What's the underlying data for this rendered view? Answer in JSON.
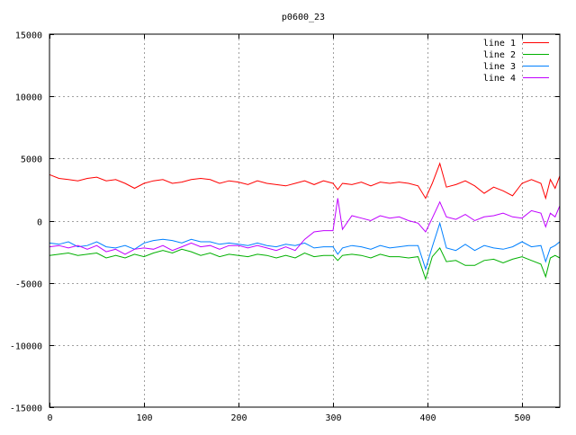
{
  "chart_data": {
    "type": "line",
    "title": "p0600_23",
    "xlabel": "",
    "ylabel": "",
    "xlim": [
      0,
      540
    ],
    "ylim": [
      -15000,
      15000
    ],
    "x_ticks": [
      0,
      100,
      200,
      300,
      400,
      500
    ],
    "y_ticks": [
      15000,
      10000,
      5000,
      0,
      -5000,
      -10000,
      -15000
    ],
    "x_tick_labels": [
      "0",
      "100",
      "200",
      "300",
      "400",
      "500"
    ],
    "y_tick_labels": [
      "15000",
      "10000",
      "5000",
      "0",
      "-5000",
      "-10000",
      "-15000"
    ],
    "grid": true,
    "legend_position": "top-right",
    "x": [
      0,
      10,
      20,
      30,
      40,
      50,
      60,
      70,
      80,
      90,
      100,
      110,
      120,
      130,
      140,
      150,
      160,
      170,
      180,
      190,
      200,
      210,
      220,
      230,
      240,
      250,
      260,
      270,
      280,
      290,
      300,
      305,
      310,
      320,
      330,
      340,
      350,
      360,
      370,
      380,
      390,
      398,
      405,
      413,
      420,
      430,
      440,
      450,
      460,
      470,
      480,
      490,
      500,
      510,
      520,
      525,
      530,
      535,
      540
    ],
    "series": [
      {
        "name": "line 1",
        "color": "#ff0000",
        "values": [
          3700,
          3400,
          3300,
          3200,
          3400,
          3500,
          3200,
          3300,
          3000,
          2600,
          3000,
          3200,
          3300,
          3000,
          3100,
          3300,
          3400,
          3300,
          3000,
          3200,
          3100,
          2900,
          3200,
          3000,
          2900,
          2800,
          3000,
          3200,
          2900,
          3200,
          3000,
          2500,
          3000,
          2900,
          3100,
          2800,
          3100,
          3000,
          3100,
          3000,
          2800,
          1800,
          3000,
          4600,
          2700,
          2900,
          3200,
          2800,
          2200,
          2700,
          2400,
          2000,
          3000,
          3300,
          3000,
          1800,
          3300,
          2600,
          3600
        ]
      },
      {
        "name": "line 2",
        "color": "#00b000",
        "values": [
          -2800,
          -2700,
          -2600,
          -2800,
          -2700,
          -2600,
          -3000,
          -2800,
          -3000,
          -2700,
          -2900,
          -2600,
          -2400,
          -2600,
          -2300,
          -2500,
          -2800,
          -2600,
          -2900,
          -2700,
          -2800,
          -2900,
          -2700,
          -2800,
          -3000,
          -2800,
          -3000,
          -2600,
          -2900,
          -2800,
          -2800,
          -3200,
          -2800,
          -2700,
          -2800,
          -3000,
          -2700,
          -2900,
          -2900,
          -3000,
          -2900,
          -4700,
          -2900,
          -2200,
          -3300,
          -3200,
          -3600,
          -3600,
          -3200,
          -3100,
          -3400,
          -3100,
          -2900,
          -3200,
          -3500,
          -4500,
          -3000,
          -2800,
          -3000
        ]
      },
      {
        "name": "line 3",
        "color": "#0080ff",
        "values": [
          -1800,
          -1900,
          -1700,
          -2100,
          -2000,
          -1700,
          -2100,
          -2200,
          -2000,
          -2300,
          -1800,
          -1600,
          -1500,
          -1600,
          -1800,
          -1500,
          -1700,
          -1700,
          -1900,
          -1800,
          -1900,
          -2000,
          -1800,
          -2000,
          -2100,
          -1900,
          -2000,
          -1800,
          -2200,
          -2100,
          -2100,
          -2700,
          -2200,
          -2000,
          -2100,
          -2300,
          -2000,
          -2200,
          -2100,
          -2000,
          -2000,
          -3900,
          -2100,
          -200,
          -2200,
          -2400,
          -1900,
          -2400,
          -2000,
          -2200,
          -2300,
          -2100,
          -1700,
          -2100,
          -2000,
          -3300,
          -2200,
          -2000,
          -1700
        ]
      },
      {
        "name": "line 4",
        "color": "#c000ff",
        "values": [
          -2100,
          -2000,
          -2200,
          -2000,
          -2300,
          -2000,
          -2500,
          -2300,
          -2700,
          -2300,
          -2200,
          -2300,
          -2000,
          -2400,
          -2100,
          -1800,
          -2100,
          -2000,
          -2300,
          -2000,
          -2000,
          -2200,
          -2000,
          -2200,
          -2400,
          -2100,
          -2400,
          -1500,
          -900,
          -800,
          -800,
          1800,
          -700,
          400,
          200,
          0,
          400,
          200,
          300,
          0,
          -200,
          -900,
          200,
          1500,
          300,
          100,
          500,
          0,
          300,
          400,
          600,
          300,
          200,
          800,
          600,
          -500,
          600,
          300,
          1200
        ]
      }
    ]
  }
}
